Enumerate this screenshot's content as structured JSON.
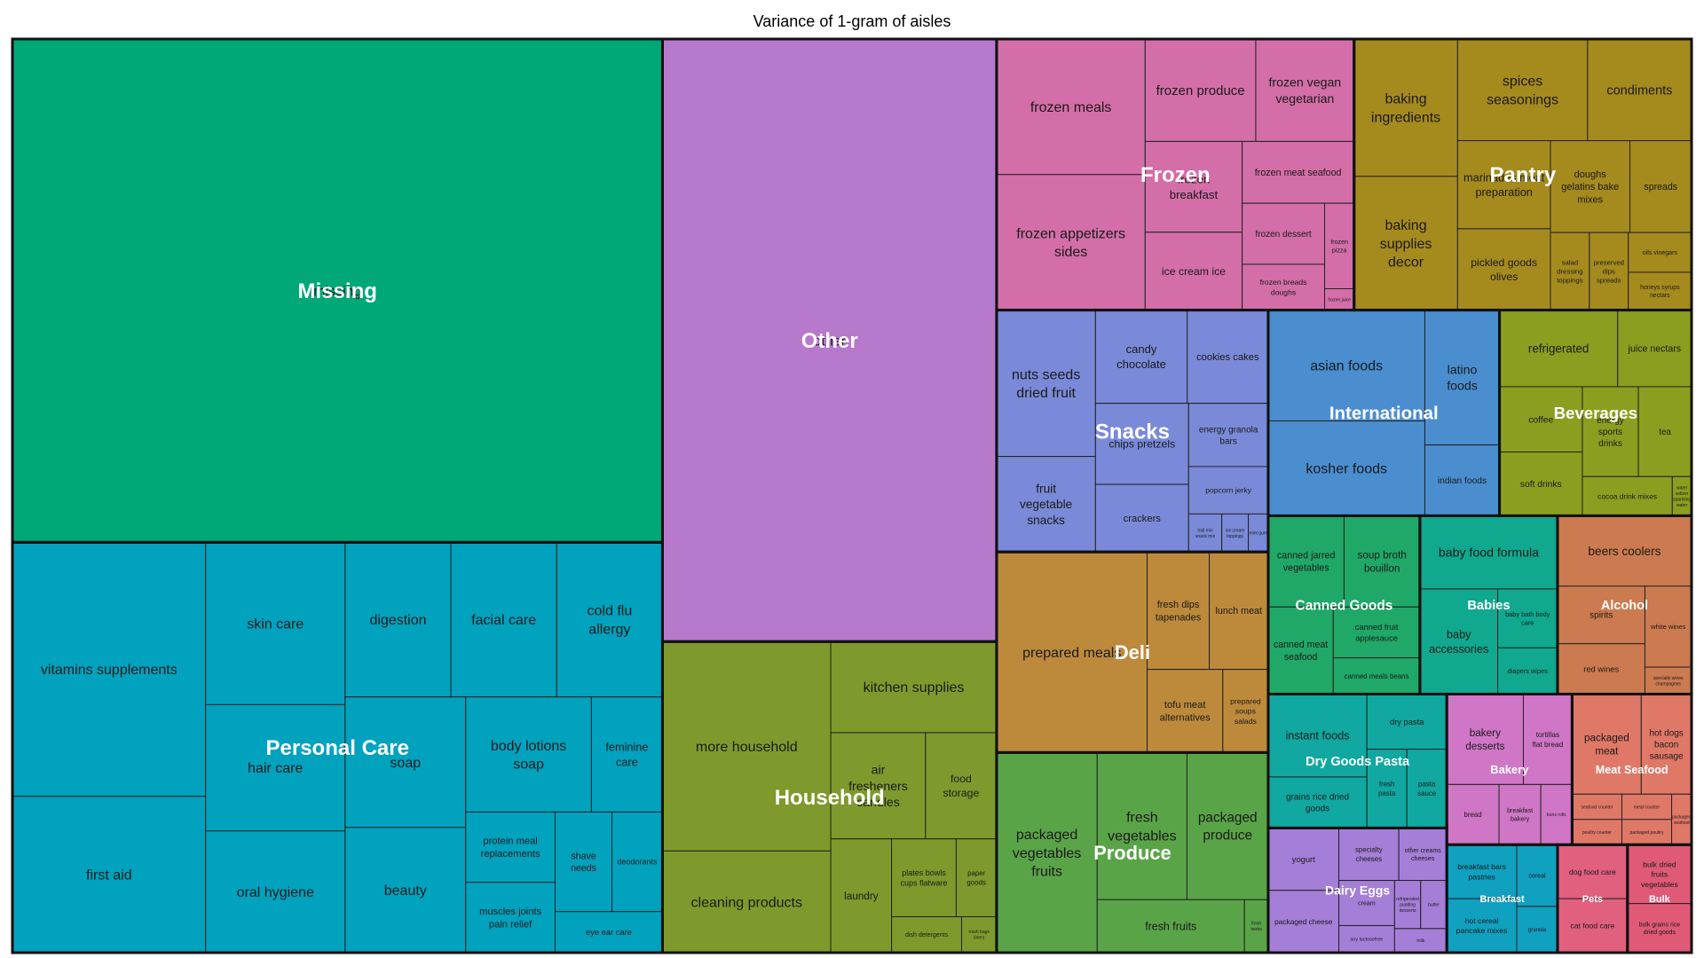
{
  "chart_data": {
    "type": "treemap",
    "title": "Variance of 1-gram of aisles",
    "groups": [
      {
        "name": "Missing",
        "color": "#00a878",
        "items": [
          {
            "label": "missing",
            "value": 26.0
          }
        ]
      },
      {
        "name": "Other",
        "color": "#b779cc",
        "items": [
          {
            "label": "other",
            "value": 16.0
          }
        ]
      },
      {
        "name": "Pantry",
        "color": "#a58a1e",
        "items": [
          {
            "label": "baking ingredients",
            "value": 1.13
          },
          {
            "label": "spices seasonings",
            "value": 1.05
          },
          {
            "label": "baking supplies decor",
            "value": 1.1
          },
          {
            "label": "condiments",
            "value": 0.84
          },
          {
            "label": "marinades meat preparation",
            "value": 0.65
          },
          {
            "label": "pickled goods olives",
            "value": 0.6
          },
          {
            "label": "doughs gelatins bake mixes",
            "value": 0.58
          },
          {
            "label": "spreads",
            "value": 0.45
          },
          {
            "label": "salad dressing toppings",
            "value": 0.24
          },
          {
            "label": "preserved dips spreads",
            "value": 0.24
          },
          {
            "label": "honeys syrups nectars",
            "value": 0.19
          },
          {
            "label": "oils vinegars",
            "value": 0.2
          }
        ]
      },
      {
        "name": "Snacks",
        "color": "#7a8ad8",
        "items": [
          {
            "label": "nuts seeds dried fruit",
            "value": 1.15
          },
          {
            "label": "cookies cakes",
            "value": 0.6
          },
          {
            "label": "chips pretzels",
            "value": 0.6
          },
          {
            "label": "fruit vegetable snacks",
            "value": 0.75
          },
          {
            "label": "candy chocolate",
            "value": 0.68
          },
          {
            "label": "crackers",
            "value": 0.5
          },
          {
            "label": "energy granola bars",
            "value": 0.4
          },
          {
            "label": "popcorn jerky",
            "value": 0.3
          },
          {
            "label": "trail mix snack mix",
            "value": 0.1
          },
          {
            "label": "ice cream toppings",
            "value": 0.08
          },
          {
            "label": "mint gum",
            "value": 0.06
          }
        ]
      },
      {
        "name": "Household",
        "color": "#7e9a2c",
        "items": [
          {
            "label": "more household",
            "value": 2.8
          },
          {
            "label": "kitchen supplies",
            "value": 1.2
          },
          {
            "label": "cleaning products",
            "value": 1.36
          },
          {
            "label": "air fresheners candles",
            "value": 0.8
          },
          {
            "label": "laundry",
            "value": 0.55
          },
          {
            "label": "food storage",
            "value": 0.6
          },
          {
            "label": "plates bowls cups flatware",
            "value": 0.4
          },
          {
            "label": "paper goods",
            "value": 0.25
          },
          {
            "label": "dish detergents",
            "value": 0.2
          },
          {
            "label": "trash bags liners",
            "value": 0.1
          }
        ]
      },
      {
        "name": "Produce",
        "color": "#5aa448",
        "items": [
          {
            "label": "packaged vegetables fruits",
            "value": 1.6
          },
          {
            "label": "fresh vegetables",
            "value": 1.05
          },
          {
            "label": "packaged produce",
            "value": 0.95
          },
          {
            "label": "fresh fruits",
            "value": 0.62
          },
          {
            "label": "fresh herbs",
            "value": 0.1
          }
        ]
      },
      {
        "name": "Deli",
        "color": "#bd8a3c",
        "items": [
          {
            "label": "prepared meals",
            "value": 2.4
          },
          {
            "label": "fresh dips tapenades",
            "value": 0.58
          },
          {
            "label": "lunch meat",
            "value": 0.55
          },
          {
            "label": "tofu meat alternatives",
            "value": 0.5
          },
          {
            "label": "prepared soups salads",
            "value": 0.3
          }
        ]
      },
      {
        "name": "International",
        "color": "#4a8ed0",
        "items": [
          {
            "label": "asian foods",
            "value": 1.38
          },
          {
            "label": "kosher foods",
            "value": 1.18
          },
          {
            "label": "latino foods",
            "value": 0.8
          },
          {
            "label": "indian foods",
            "value": 0.42
          }
        ]
      },
      {
        "name": "Personal Care",
        "color": "#00a2be",
        "items": [
          {
            "label": "vitamins supplements",
            "value": 3.9
          },
          {
            "label": "first aid",
            "value": 2.4
          },
          {
            "label": "skin care",
            "value": 1.8
          },
          {
            "label": "hair care",
            "value": 1.4
          },
          {
            "label": "digestion",
            "value": 1.3
          },
          {
            "label": "facial care",
            "value": 1.3
          },
          {
            "label": "beauty",
            "value": 1.2
          },
          {
            "label": "cold flu allergy",
            "value": 1.3
          },
          {
            "label": "oral hygiene",
            "value": 1.35
          },
          {
            "label": "soap",
            "value": 1.25
          },
          {
            "label": "body lotions soap",
            "value": 1.15
          },
          {
            "label": "feminine care",
            "value": 0.65
          },
          {
            "label": "protein meal replacements",
            "value": 0.5
          },
          {
            "label": "muscles joints pain relief",
            "value": 0.5
          },
          {
            "label": "shave needs",
            "value": 0.45
          },
          {
            "label": "deodorants",
            "value": 0.4
          },
          {
            "label": "eye ear care",
            "value": 0.35
          }
        ]
      },
      {
        "name": "Frozen",
        "color": "#d36ea8",
        "items": [
          {
            "label": "frozen meals",
            "value": 1.6
          },
          {
            "label": "frozen appetizers sides",
            "value": 1.6
          },
          {
            "label": "frozen produce",
            "value": 0.9
          },
          {
            "label": "frozen vegan vegetarian",
            "value": 0.8
          },
          {
            "label": "frozen breakfast",
            "value": 0.7
          },
          {
            "label": "ice cream ice",
            "value": 0.6
          },
          {
            "label": "frozen meat seafood",
            "value": 0.55
          },
          {
            "label": "frozen dessert",
            "value": 0.4
          },
          {
            "label": "frozen breads doughs",
            "value": 0.3
          },
          {
            "label": "frozen pizza",
            "value": 0.2
          },
          {
            "label": "frozen juice",
            "value": 0.05
          }
        ]
      },
      {
        "name": "Beverages",
        "color": "#8c9e20",
        "items": [
          {
            "label": "refrigerated",
            "value": 0.72
          },
          {
            "label": "juice nectars",
            "value": 0.45
          },
          {
            "label": "energy sports drinks",
            "value": 0.4
          },
          {
            "label": "coffee",
            "value": 0.43
          },
          {
            "label": "soft drinks",
            "value": 0.42
          },
          {
            "label": "tea",
            "value": 0.38
          },
          {
            "label": "cocoa drink mixes",
            "value": 0.28
          },
          {
            "label": "water seltzer sparkling water",
            "value": 0.06
          }
        ]
      },
      {
        "name": "Alcohol",
        "color": "#cc7a50",
        "items": [
          {
            "label": "beers coolers",
            "value": 0.75
          },
          {
            "label": "spirits",
            "value": 0.4
          },
          {
            "label": "red wines",
            "value": 0.35
          },
          {
            "label": "white wines",
            "value": 0.3
          },
          {
            "label": "specialty wines champagnes",
            "value": 0.1
          }
        ]
      },
      {
        "name": "Canned Goods",
        "color": "#20a868",
        "items": [
          {
            "label": "canned jarred vegetables",
            "value": 0.55
          },
          {
            "label": "canned meat seafood",
            "value": 0.45
          },
          {
            "label": "soup broth bouillon",
            "value": 0.55
          },
          {
            "label": "canned fruit applesauce",
            "value": 0.35
          },
          {
            "label": "canned meals beans",
            "value": 0.25
          }
        ]
      },
      {
        "name": "Dairy Eggs",
        "color": "#a57ed8",
        "items": [
          {
            "label": "yogurt",
            "value": 0.35
          },
          {
            "label": "specialty cheeses",
            "value": 0.25
          },
          {
            "label": "soy lactosefree",
            "value": 0.12
          },
          {
            "label": "packaged cheese",
            "value": 0.35
          },
          {
            "label": "other creams cheeses",
            "value": 0.2
          },
          {
            "label": "refrigerated pudding desserts",
            "value": 0.1
          },
          {
            "label": "cream",
            "value": 0.2
          },
          {
            "label": "butter",
            "value": 0.1
          },
          {
            "label": "milk",
            "value": 0.1
          }
        ]
      },
      {
        "name": "Dry Goods Pasta",
        "color": "#10a8a0",
        "items": [
          {
            "label": "instant foods",
            "value": 0.65
          },
          {
            "label": "dry pasta",
            "value": 0.35
          },
          {
            "label": "fresh pasta",
            "value": 0.25
          },
          {
            "label": "grains rice dried goods",
            "value": 0.4
          },
          {
            "label": "pasta sauce",
            "value": 0.25
          }
        ]
      },
      {
        "name": "Babies",
        "color": "#10a88e",
        "items": [
          {
            "label": "baby food formula",
            "value": 0.8
          },
          {
            "label": "baby accessories",
            "value": 0.65
          },
          {
            "label": "baby bath body care",
            "value": 0.28
          },
          {
            "label": "diapers wipes",
            "value": 0.22
          }
        ]
      },
      {
        "name": "Bakery",
        "color": "#d076c6",
        "items": [
          {
            "label": "bakery desserts",
            "value": 0.55
          },
          {
            "label": "tortillas flat bread",
            "value": 0.35
          },
          {
            "label": "breakfast bakery",
            "value": 0.2
          },
          {
            "label": "bread",
            "value": 0.25
          },
          {
            "label": "buns rolls",
            "value": 0.15
          }
        ]
      },
      {
        "name": "Breakfast",
        "color": "#10a0c0",
        "items": [
          {
            "label": "breakfast bars pastries",
            "value": 0.3
          },
          {
            "label": "cereal",
            "value": 0.2
          },
          {
            "label": "hot cereal pancake mixes",
            "value": 0.3
          },
          {
            "label": "granola",
            "value": 0.15
          }
        ]
      },
      {
        "name": "Meat Seafood",
        "color": "#e07868",
        "items": [
          {
            "label": "packaged meat",
            "value": 0.55
          },
          {
            "label": "hot dogs bacon sausage",
            "value": 0.4
          },
          {
            "label": "seafood counter",
            "value": 0.1
          },
          {
            "label": "poultry counter",
            "value": 0.1
          },
          {
            "label": "meat counter",
            "value": 0.1
          },
          {
            "label": "packaged poultry",
            "value": 0.1
          },
          {
            "label": "packaged seafood",
            "value": 0.08
          }
        ]
      },
      {
        "name": "Pets",
        "color": "#e0607e",
        "items": [
          {
            "label": "dog food care",
            "value": 0.3
          },
          {
            "label": "cat food care",
            "value": 0.3
          }
        ]
      },
      {
        "name": "Bulk",
        "color": "#e05a78",
        "items": [
          {
            "label": "bulk dried fruits vegetables",
            "value": 0.3
          },
          {
            "label": "bulk grains rice dried goods",
            "value": 0.25
          }
        ]
      }
    ]
  }
}
